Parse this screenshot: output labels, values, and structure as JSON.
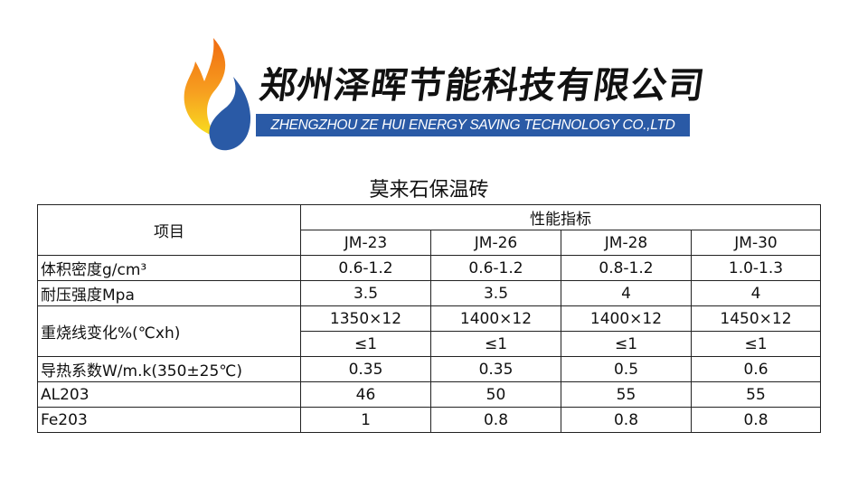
{
  "logo": {
    "company_cn": "郑州泽晖节能科技有限公司",
    "company_en": "ZHENGZHOU ZE HUI ENERGY SAVING TECHNOLOGY CO.,LTD",
    "colors": {
      "flame_orange": "#f07a10",
      "flame_yellow": "#f8d020",
      "drop_blue": "#2a5aa6"
    }
  },
  "title": "莫来石保温砖",
  "table": {
    "item_header": "项目",
    "group_header": "性能指标",
    "models": [
      "JM-23",
      "JM-26",
      "JM-28",
      "JM-30"
    ],
    "rows": [
      {
        "label": "体积密度g/cm³",
        "values": [
          "0.6-1.2",
          "0.6-1.2",
          "0.8-1.2",
          "1.0-1.3"
        ]
      },
      {
        "label": "耐压强度Mpa",
        "values": [
          "3.5",
          "3.5",
          "4",
          "4"
        ]
      },
      {
        "label": "重烧线变化%(℃xh)",
        "values": [
          "1350×12",
          "1400×12",
          "1400×12",
          "1450×12"
        ],
        "values2": [
          "≤1",
          "≤1",
          "≤1",
          "≤1"
        ]
      },
      {
        "label": "导热系数W/m.k(350±25℃)",
        "values": [
          "0.35",
          "0.35",
          "0.5",
          "0.6"
        ]
      },
      {
        "label": "AL203",
        "values": [
          "46",
          "50",
          "55",
          "55"
        ]
      },
      {
        "label": "Fe203",
        "values": [
          "1",
          "0.8",
          "0.8",
          "0.8"
        ]
      }
    ]
  }
}
